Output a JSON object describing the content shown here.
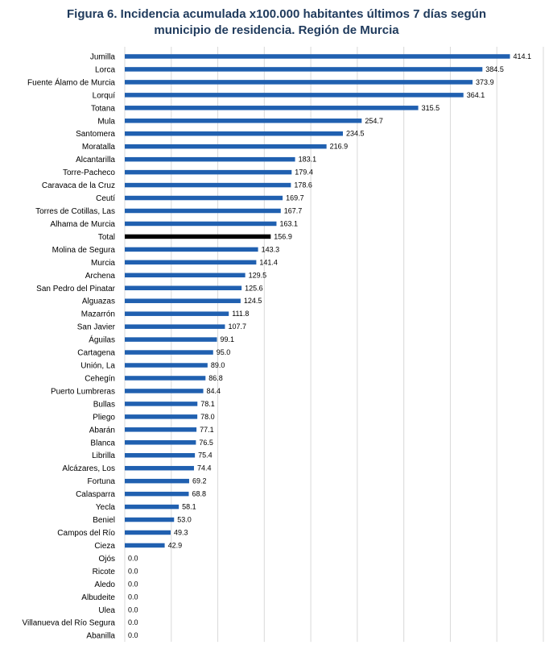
{
  "chart_data": {
    "type": "bar",
    "orientation": "horizontal",
    "title_lines": [
      "Figura 6. Incidencia acumulada x100.000 habitantes últimos 7 días según",
      "municipio de residencia. Región de Murcia"
    ],
    "categories": [
      "Jumilla",
      "Lorca",
      "Fuente Álamo de Murcia",
      "Lorquí",
      "Totana",
      "Mula",
      "Santomera",
      "Moratalla",
      "Alcantarilla",
      "Torre-Pacheco",
      "Caravaca de la Cruz",
      "Ceutí",
      "Torres de Cotillas, Las",
      "Alhama de Murcia",
      "Total",
      "Molina de Segura",
      "Murcia",
      "Archena",
      "San Pedro del Pinatar",
      "Alguazas",
      "Mazarrón",
      "San Javier",
      "Águilas",
      "Cartagena",
      "Unión, La",
      "Cehegín",
      "Puerto Lumbreras",
      "Bullas",
      "Pliego",
      "Abarán",
      "Blanca",
      "Librilla",
      "Alcázares, Los",
      "Fortuna",
      "Calasparra",
      "Yecla",
      "Beniel",
      "Campos del Río",
      "Cieza",
      "Ojós",
      "Ricote",
      "Aledo",
      "Albudeite",
      "Ulea",
      "Villanueva del Río Segura",
      "Abanilla"
    ],
    "values": [
      414.1,
      384.5,
      373.9,
      364.1,
      315.5,
      254.7,
      234.5,
      216.9,
      183.1,
      179.4,
      178.6,
      169.7,
      167.7,
      163.1,
      156.9,
      143.3,
      141.4,
      129.5,
      125.6,
      124.5,
      111.8,
      107.7,
      99.1,
      95.0,
      89.0,
      86.8,
      84.4,
      78.1,
      78.0,
      77.1,
      76.5,
      75.4,
      74.4,
      69.2,
      68.8,
      58.1,
      53.0,
      49.3,
      42.9,
      0.0,
      0.0,
      0.0,
      0.0,
      0.0,
      0.0,
      0.0
    ],
    "value_labels": [
      "414.1",
      "384.5",
      "373.9",
      "364.1",
      "315.5",
      "254.7",
      "234.5",
      "216.9",
      "183.1",
      "179.4",
      "178.6",
      "169.7",
      "167.7",
      "163.1",
      "156.9",
      "143.3",
      "141.4",
      "129.5",
      "125.6",
      "124.5",
      "111.8",
      "107.7",
      "99.1",
      "95.0",
      "89.0",
      "86.8",
      "84.4",
      "78.1",
      "78.0",
      "77.1",
      "76.5",
      "75.4",
      "74.4",
      "69.2",
      "68.8",
      "58.1",
      "53.0",
      "49.3",
      "42.9",
      "0.0",
      "0.0",
      "0.0",
      "0.0",
      "0.0",
      "0.0",
      "0.0"
    ],
    "highlight_category": "Total",
    "xlim": [
      0,
      450
    ],
    "grid": true,
    "x_gridlines": [
      0,
      50,
      100,
      150,
      200,
      250,
      300,
      350,
      400,
      450
    ],
    "bar_color": "#2060b0",
    "highlight_color": "#000000",
    "grid_color": "#d9d9d9"
  }
}
